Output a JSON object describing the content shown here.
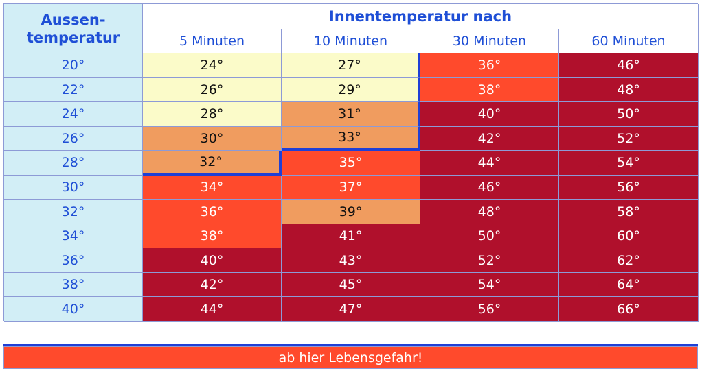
{
  "table": {
    "row_header": [
      "Aussen-",
      "temperatur"
    ],
    "group_header": "Innentemperatur nach",
    "columns": [
      "5 Minuten",
      "10 Minuten",
      "30 Minuten",
      "60 Minuten"
    ],
    "rows": [
      {
        "label": "20°",
        "cells": [
          "24°",
          "27°",
          "36°",
          "46°"
        ]
      },
      {
        "label": "22°",
        "cells": [
          "26°",
          "29°",
          "38°",
          "48°"
        ]
      },
      {
        "label": "24°",
        "cells": [
          "28°",
          "31°",
          "40°",
          "50°"
        ]
      },
      {
        "label": "26°",
        "cells": [
          "30°",
          "33°",
          "42°",
          "52°"
        ]
      },
      {
        "label": "28°",
        "cells": [
          "32°",
          "35°",
          "44°",
          "54°"
        ]
      },
      {
        "label": "30°",
        "cells": [
          "34°",
          "37°",
          "46°",
          "56°"
        ]
      },
      {
        "label": "32°",
        "cells": [
          "36°",
          "39°",
          "48°",
          "58°"
        ]
      },
      {
        "label": "34°",
        "cells": [
          "38°",
          "41°",
          "50°",
          "60°"
        ]
      },
      {
        "label": "36°",
        "cells": [
          "40°",
          "43°",
          "52°",
          "62°"
        ]
      },
      {
        "label": "38°",
        "cells": [
          "42°",
          "45°",
          "54°",
          "64°"
        ]
      },
      {
        "label": "40°",
        "cells": [
          "44°",
          "47°",
          "56°",
          "66°"
        ]
      }
    ]
  },
  "footer": "ab hier Lebensgefahr!"
}
